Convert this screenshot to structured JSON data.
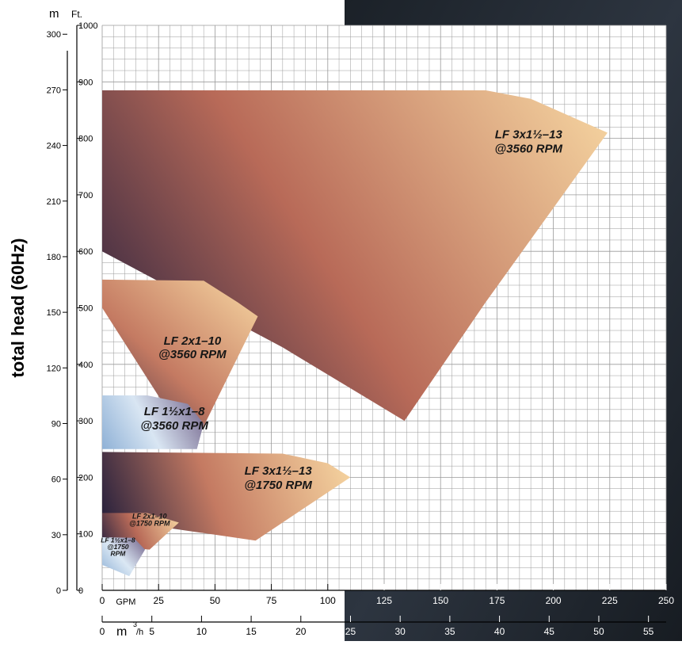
{
  "chart_data": {
    "type": "area",
    "ylabel": "total head (60Hz)",
    "unit_m_label": "m",
    "unit_ft_label": "Ft.",
    "unit_gpm_label": "GPM",
    "unit_m3h_label": "m",
    "unit_m3h_sup": "3",
    "unit_m3h_tail": "/h",
    "gpm_ticks": [
      "0",
      "25",
      "50",
      "75",
      "100",
      "125",
      "150",
      "175",
      "200",
      "225",
      "250"
    ],
    "m3h_ticks": [
      "0",
      "5",
      "10",
      "15",
      "20",
      "25",
      "30",
      "35",
      "40",
      "45",
      "50",
      "55"
    ],
    "ft_ticks": [
      "0",
      "100",
      "200",
      "300",
      "400",
      "500",
      "600",
      "700",
      "800",
      "900",
      "1000"
    ],
    "m_ticks": [
      "0",
      "30",
      "60",
      "90",
      "120",
      "150",
      "180",
      "210",
      "240",
      "270",
      "300"
    ],
    "xlim_gpm": [
      0,
      250
    ],
    "ylim_ft": [
      0,
      1000
    ],
    "grid": true,
    "series": [
      {
        "name": "LF 3x1½–13 @3560 RPM",
        "label_lines": [
          "LF 3x1½–13",
          "@3560 RPM"
        ],
        "colors": [
          "#1c1a3c",
          "#b86a58",
          "#f7d7a2"
        ],
        "outline_gpm_ft": [
          [
            0,
            885
          ],
          [
            170,
            885
          ],
          [
            190,
            870
          ],
          [
            207,
            840
          ],
          [
            224,
            810
          ],
          [
            170,
            510
          ],
          [
            134,
            300
          ],
          [
            80,
            430
          ],
          [
            0,
            600
          ]
        ]
      },
      {
        "name": "LF 2x1–10 @3560 RPM",
        "label_lines": [
          "LF 2x1–10",
          "@3560 RPM"
        ],
        "colors": [
          "#2a2340",
          "#c47a62",
          "#f7d7a2"
        ],
        "outline_gpm_ft": [
          [
            0,
            550
          ],
          [
            45,
            548
          ],
          [
            60,
            510
          ],
          [
            69,
            485
          ],
          [
            40,
            250
          ],
          [
            0,
            500
          ]
        ]
      },
      {
        "name": "LF 1½x1–8 @3560 RPM",
        "label_lines": [
          "LF 1½x1–8",
          "@3560 RPM"
        ],
        "colors": [
          "#8fb1d6",
          "#d9e6f3",
          "#6e5e86"
        ],
        "outline_gpm_ft": [
          [
            0,
            345
          ],
          [
            20,
            345
          ],
          [
            38,
            330
          ],
          [
            45,
            295
          ],
          [
            42,
            250
          ],
          [
            0,
            250
          ]
        ]
      },
      {
        "name": "LF 3x1½–13 @1750 RPM",
        "label_lines": [
          "LF 3x1½–13",
          "@1750 RPM"
        ],
        "colors": [
          "#1e1b3a",
          "#c47a62",
          "#f7d7a2"
        ],
        "outline_gpm_ft": [
          [
            0,
            245
          ],
          [
            80,
            242
          ],
          [
            100,
            225
          ],
          [
            110,
            200
          ],
          [
            68,
            88
          ],
          [
            30,
            110
          ],
          [
            0,
            125
          ]
        ]
      },
      {
        "name": "LF 2x1–10 @1750 RPM",
        "label_lines": [
          "LF 2x1–10",
          "@1750 RPM"
        ],
        "colors": [
          "#2a2340",
          "#b86a58",
          "#f7d7a2"
        ],
        "outline_gpm_ft": [
          [
            0,
            137
          ],
          [
            20,
            137
          ],
          [
            34,
            120
          ],
          [
            21,
            72
          ],
          [
            0,
            80
          ]
        ]
      },
      {
        "name": "LF 1½x1–8 @1750 RPM",
        "label_lines": [
          "LF 1½x1–8",
          "@1750",
          "RPM"
        ],
        "colors": [
          "#8fb1d6",
          "#dbe8f4",
          "#6e5e86"
        ],
        "outline_gpm_ft": [
          [
            0,
            94
          ],
          [
            14,
            93
          ],
          [
            19,
            72
          ],
          [
            12,
            25
          ],
          [
            0,
            45
          ]
        ]
      }
    ]
  }
}
